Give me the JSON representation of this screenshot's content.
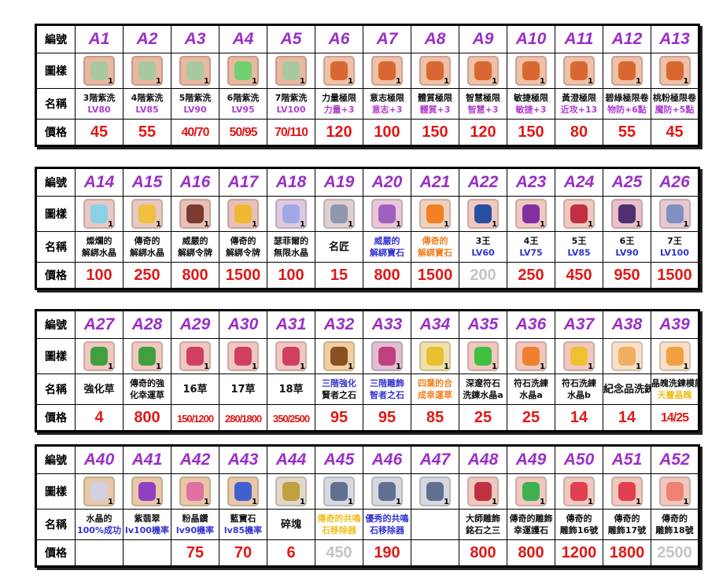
{
  "labels": {
    "id": "編號",
    "icon": "圖樣",
    "name": "名稱",
    "price": "價格"
  },
  "colors": {
    "header": "#9a2ec8",
    "price": "#e01818",
    "gray": "#c4c4c4",
    "purple": "#b040d0",
    "blue": "#3434d0",
    "orange": "#f08020",
    "yellow": "#f0c020",
    "black": "#111111"
  },
  "tables": [
    {
      "items": [
        {
          "id": "A1",
          "name1": "3階紫洗",
          "name2": "LV80",
          "c2": "purple",
          "price": "45",
          "icon": "hourglass-icon",
          "ic": "#e8b8a0",
          "sc": "#a8c8a0"
        },
        {
          "id": "A2",
          "name1": "4階紫洗",
          "name2": "LV85",
          "c2": "purple",
          "price": "55",
          "icon": "hourglass-icon",
          "ic": "#e8b8a0",
          "sc": "#a8c8a0"
        },
        {
          "id": "A3",
          "name1": "5階紫洗",
          "name2": "LV90",
          "c2": "purple",
          "price": "40/70",
          "icon": "hourglass-icon",
          "ic": "#e8b8a0",
          "sc": "#a8c8a0"
        },
        {
          "id": "A4",
          "name1": "6階紫洗",
          "name2": "LV95",
          "c2": "purple",
          "price": "50/95",
          "icon": "hourglass-icon",
          "ic": "#e8b8a0",
          "sc": "#70d070"
        },
        {
          "id": "A5",
          "name1": "7階紫洗",
          "name2": "LV100",
          "c2": "purple",
          "price": "70/110",
          "icon": "hourglass-icon",
          "ic": "#e8b8a0",
          "sc": "#a8c8a0"
        },
        {
          "id": "A6",
          "name1": "力量極限",
          "name2": "力量+3",
          "c2": "purple",
          "price": "120",
          "icon": "scroll-icon",
          "ic": "#f0c0a8",
          "sc": "#d86830"
        },
        {
          "id": "A7",
          "name1": "意志極限",
          "name2": "意志+3",
          "c2": "purple",
          "price": "100",
          "icon": "scroll-icon",
          "ic": "#f0c0a8",
          "sc": "#d86830"
        },
        {
          "id": "A8",
          "name1": "體質極限",
          "name2": "體質+3",
          "c2": "purple",
          "price": "150",
          "icon": "scroll-icon",
          "ic": "#f0c0a8",
          "sc": "#d86830"
        },
        {
          "id": "A9",
          "name1": "智慧極限",
          "name2": "智慧+3",
          "c2": "purple",
          "price": "120",
          "icon": "scroll-icon",
          "ic": "#f0c0a8",
          "sc": "#d86830"
        },
        {
          "id": "A10",
          "name1": "敏捷極限",
          "name2": "敏捷+3",
          "c2": "purple",
          "price": "150",
          "icon": "scroll-icon",
          "ic": "#f0c0a8",
          "sc": "#d86830"
        },
        {
          "id": "A11",
          "name1": "黃澄極限",
          "name2": "近攻+13",
          "c2": "purple",
          "price": "80",
          "icon": "scroll-icon",
          "ic": "#f0c0a8",
          "sc": "#d86830"
        },
        {
          "id": "A12",
          "name1": "碧綠極限卷",
          "name2": "物防+6點",
          "c2": "purple",
          "price": "55",
          "icon": "scroll-icon",
          "ic": "#f0c0a8",
          "sc": "#d86830"
        },
        {
          "id": "A13",
          "name1": "桃粉極限卷",
          "name2": "魔防+5點",
          "c2": "purple",
          "price": "45",
          "icon": "scroll-icon",
          "ic": "#f0c0a8",
          "sc": "#d86830"
        }
      ]
    },
    {
      "items": [
        {
          "id": "A14",
          "name1": "燦爛的",
          "name2": "解綁水晶",
          "c2": "black",
          "price": "100",
          "icon": "crystal-icon",
          "ic": "#e8c8c0",
          "sc": "#8ad0e8"
        },
        {
          "id": "A15",
          "name1": "傳奇的",
          "name2": "解綁水晶",
          "c2": "black",
          "price": "250",
          "icon": "crystal-icon",
          "ic": "#e8c8c0",
          "sc": "#f0c040"
        },
        {
          "id": "A16",
          "name1": "威嚴的",
          "name2": "解綁令牌",
          "c2": "black",
          "price": "800",
          "icon": "lock-token-icon",
          "ic": "#e8c0b8",
          "sc": "#7a3a30"
        },
        {
          "id": "A17",
          "name1": "傳奇的",
          "name2": "解綁令牌",
          "c2": "black",
          "price": "1500",
          "icon": "lock-token-icon",
          "ic": "#e8c0b8",
          "sc": "#f0b830"
        },
        {
          "id": "A18",
          "name1": "瑟菲爾的",
          "name2": "無限水晶",
          "c2": "black",
          "price": "100",
          "icon": "crystal-icon",
          "ic": "#e0c8e0",
          "sc": "#a0a8e8"
        },
        {
          "id": "A19",
          "name1": "名匠",
          "name2": "",
          "c2": "black",
          "price": "15",
          "icon": "key-icon",
          "ic": "#e0d0d0",
          "sc": "#9098b0"
        },
        {
          "id": "A20",
          "name1": "威嚴的",
          "name2": "解綁寶石",
          "c1": "blue",
          "c2": "blue",
          "price": "800",
          "icon": "gem-icon",
          "ic": "#e8c8d8",
          "sc": "#a060c0"
        },
        {
          "id": "A21",
          "name1": "傳奇的",
          "name2": "解綁寶石",
          "c1": "orange",
          "c2": "orange",
          "price": "1500",
          "icon": "gem-icon",
          "ic": "#f0d0c0",
          "sc": "#f08020"
        },
        {
          "id": "A22",
          "name1": "3王",
          "name2": "LV60",
          "c2": "blue",
          "price": "200",
          "pc": "gray",
          "icon": "crown-icon",
          "ic": "#f0c8c0",
          "sc": "#2850a0"
        },
        {
          "id": "A23",
          "name1": "4王",
          "name2": "LV75",
          "c2": "blue",
          "price": "250",
          "icon": "crown-icon",
          "ic": "#f0c8c0",
          "sc": "#8030a0"
        },
        {
          "id": "A24",
          "name1": "5王",
          "name2": "LV85",
          "c2": "blue",
          "price": "450",
          "icon": "crown-icon",
          "ic": "#f0c8c0",
          "sc": "#c03040"
        },
        {
          "id": "A25",
          "name1": "6王",
          "name2": "LV90",
          "c2": "blue",
          "price": "950",
          "icon": "crown-icon",
          "ic": "#e8c0c8",
          "sc": "#503070"
        },
        {
          "id": "A26",
          "name1": "7王",
          "name2": "LV100",
          "c2": "blue",
          "price": "1500",
          "icon": "crown-icon",
          "ic": "#e8c8d0",
          "sc": "#8090c0"
        }
      ]
    },
    {
      "items": [
        {
          "id": "A27",
          "name1": "強化草",
          "name2": "",
          "c2": "black",
          "price": "4",
          "icon": "clover-icon",
          "ic": "#f0c8c0",
          "sc": "#40a040"
        },
        {
          "id": "A28",
          "name1": "傳奇的強",
          "name2": "化幸運草",
          "c2": "black",
          "price": "800",
          "icon": "clover-icon",
          "ic": "#f0c8c0",
          "sc": "#40a040"
        },
        {
          "id": "A29",
          "name1": "16草",
          "name2": "",
          "c2": "black",
          "price": "150/1200",
          "icon": "clover-icon",
          "ic": "#f0c8c0",
          "sc": "#d04060"
        },
        {
          "id": "A30",
          "name1": "17草",
          "name2": "",
          "c2": "black",
          "price": "280/1800",
          "icon": "clover-icon",
          "ic": "#f0c8c0",
          "sc": "#d04060"
        },
        {
          "id": "A31",
          "name1": "18草",
          "name2": "",
          "c2": "black",
          "price": "350/2500",
          "icon": "clover-icon",
          "ic": "#f0c8c0",
          "sc": "#d04060"
        },
        {
          "id": "A32",
          "name1": "三階強化",
          "name2": "賢者之石",
          "c1": "blue",
          "c2": "black",
          "price": "95",
          "icon": "stone-icon",
          "ic": "#f0d0a0",
          "sc": "#8a5020"
        },
        {
          "id": "A33",
          "name1": "三階雕飾",
          "name2": "智者之石",
          "c1": "blue",
          "c2": "blue",
          "price": "95",
          "icon": "stone-icon",
          "ic": "#e0c0d0",
          "sc": "#c04080"
        },
        {
          "id": "A34",
          "name1": "四葉的合",
          "name2": "成幸運草",
          "c1": "orange",
          "c2": "orange",
          "price": "85",
          "icon": "clover-icon",
          "ic": "#f0e0b0",
          "sc": "#e8c030"
        },
        {
          "id": "A35",
          "name1": "深邃符石",
          "name2": "洗鍊水晶a",
          "c2": "black",
          "price": "25",
          "icon": "rune-crystal-icon",
          "ic": "#f0c8c0",
          "sc": "#40c040"
        },
        {
          "id": "A36",
          "name1": "符石洗練",
          "name2": "水晶a",
          "c2": "black",
          "price": "25",
          "icon": "rune-crystal-icon",
          "ic": "#f0c8c0",
          "sc": "#f08030"
        },
        {
          "id": "A37",
          "name1": "符石洗練",
          "name2": "水晶b",
          "c2": "black",
          "price": "14",
          "icon": "rune-crystal-icon",
          "ic": "#f0c8c0",
          "sc": "#f0c030"
        },
        {
          "id": "A38",
          "name1": "紀念品洗鍊",
          "name2": "",
          "c2": "black",
          "price": "14",
          "icon": "souvenir-icon",
          "ic": "#f8e0c8",
          "sc": "#f0b060"
        },
        {
          "id": "A39",
          "name1": "晶魄洗鍊模能",
          "name2": "天靈晶魄",
          "c2": "yellow",
          "price": "14/25",
          "icon": "souvenir-icon",
          "ic": "#f8e0c8",
          "sc": "#f0a040"
        }
      ]
    },
    {
      "items": [
        {
          "id": "A40",
          "name1": "水晶的",
          "name2": "100%成功",
          "c2": "blue",
          "price": "",
          "icon": "wand-icon",
          "ic": "#e8c8a8",
          "sc": "#d0d0e0"
        },
        {
          "id": "A41",
          "name1": "紫翡翠",
          "name2": "lv100機率",
          "c2": "blue",
          "price": "",
          "icon": "wand-icon",
          "ic": "#e8c8a8",
          "sc": "#9040c0"
        },
        {
          "id": "A42",
          "name1": "粉晶鑽",
          "name2": "lv90機率",
          "c2": "blue",
          "price": "75",
          "icon": "wand-icon",
          "ic": "#e8c8a8",
          "sc": "#e070a0"
        },
        {
          "id": "A43",
          "name1": "藍寶石",
          "name2": "lv85機率",
          "c2": "blue",
          "price": "70",
          "icon": "wand-icon",
          "ic": "#e8c8a8",
          "sc": "#4060d0"
        },
        {
          "id": "A44",
          "name1": "碎塊",
          "name2": "",
          "c2": "black",
          "price": "6",
          "icon": "fragment-icon",
          "ic": "#e0d8c8",
          "sc": "#c0a040"
        },
        {
          "id": "A45",
          "name1": "傳奇的共鳴",
          "name2": "石移除器",
          "c1": "yellow",
          "c2": "yellow",
          "price": "450",
          "pc": "gray",
          "icon": "remover-icon",
          "ic": "#d8d8e0",
          "sc": "#607090"
        },
        {
          "id": "A46",
          "name1": "優秀的共鳴",
          "name2": "石移除器",
          "c1": "blue",
          "c2": "blue",
          "price": "190",
          "icon": "remover-icon",
          "ic": "#d8d8e0",
          "sc": "#607090"
        },
        {
          "id": "A47",
          "name1": "",
          "name2": "",
          "c2": "black",
          "price": "",
          "icon": "remover-icon",
          "ic": "#d8d8e0",
          "sc": "#607090"
        },
        {
          "id": "A48",
          "name1": "大師雕飾",
          "name2": "銘石之三",
          "c2": "black",
          "price": "800",
          "icon": "engraving-stone-icon",
          "ic": "#f0c8c0",
          "sc": "#c03040"
        },
        {
          "id": "A49",
          "name1": "傳奇的雕飾",
          "name2": "幸運護石",
          "c2": "black",
          "price": "800",
          "icon": "clover-icon",
          "ic": "#f0c8c0",
          "sc": "#40b050"
        },
        {
          "id": "A50",
          "name1": "傳奇的",
          "name2": "雕飾16號",
          "c2": "black",
          "price": "1200",
          "icon": "heart-clover-icon",
          "ic": "#f0c8c0",
          "sc": "#e04050"
        },
        {
          "id": "A51",
          "name1": "傳奇的",
          "name2": "雕飾17號",
          "c2": "black",
          "price": "1800",
          "icon": "heart-clover-icon",
          "ic": "#f0c8c0",
          "sc": "#e04050"
        },
        {
          "id": "A52",
          "name1": "傳奇的",
          "name2": "雕飾18號",
          "c2": "black",
          "price": "2500",
          "pc": "gray",
          "icon": "heart-clover-icon",
          "ic": "#f0c8c0",
          "sc": "#f08070"
        }
      ]
    }
  ]
}
